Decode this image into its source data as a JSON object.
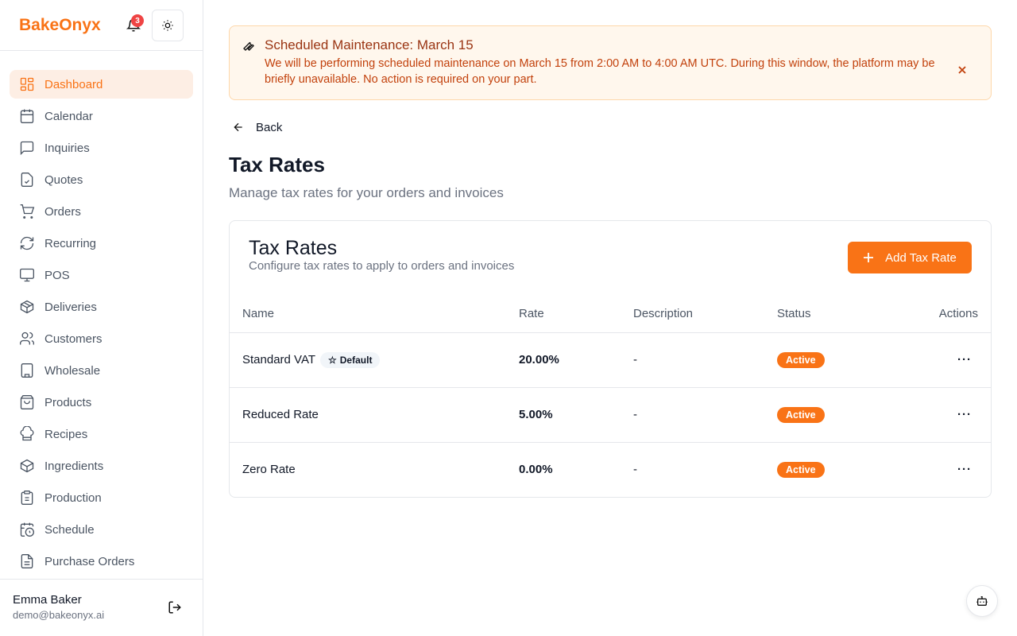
{
  "brand": {
    "name": "BakeOnyx",
    "notifications": "3",
    "accent": "#f97316"
  },
  "sidebar": {
    "items": [
      {
        "label": "Dashboard",
        "icon": "dashboard-icon",
        "active": true
      },
      {
        "label": "Calendar",
        "icon": "calendar-icon"
      },
      {
        "label": "Inquiries",
        "icon": "message-icon"
      },
      {
        "label": "Quotes",
        "icon": "file-check-icon"
      },
      {
        "label": "Orders",
        "icon": "cart-icon"
      },
      {
        "label": "Recurring",
        "icon": "refresh-icon"
      },
      {
        "label": "POS",
        "icon": "monitor-icon"
      },
      {
        "label": "Deliveries",
        "icon": "package-icon"
      },
      {
        "label": "Customers",
        "icon": "users-icon"
      },
      {
        "label": "Wholesale",
        "icon": "building-icon"
      },
      {
        "label": "Products",
        "icon": "shopping-bag-icon"
      },
      {
        "label": "Recipes",
        "icon": "chef-hat-icon"
      },
      {
        "label": "Ingredients",
        "icon": "box-icon"
      },
      {
        "label": "Production",
        "icon": "clipboard-icon"
      },
      {
        "label": "Schedule",
        "icon": "calendar-clock-icon"
      },
      {
        "label": "Purchase Orders",
        "icon": "file-text-icon"
      }
    ]
  },
  "user": {
    "name": "Emma Baker",
    "email": "demo@bakeonyx.ai"
  },
  "alert": {
    "title": "Scheduled Maintenance: March 15",
    "message": "We will be performing scheduled maintenance on March 15 from 2:00 AM to 4:00 AM UTC. During this window, the platform may be briefly unavailable. No action is required on your part."
  },
  "page": {
    "back": "Back",
    "title": "Tax Rates",
    "subtitle": "Manage tax rates for your orders and invoices"
  },
  "card": {
    "title": "Tax Rates",
    "subtitle": "Configure tax rates to apply to orders and invoices",
    "add_label": "Add Tax Rate"
  },
  "table": {
    "headers": [
      "Name",
      "Rate",
      "Description",
      "Status",
      "Actions"
    ],
    "rows": [
      {
        "name": "Standard VAT",
        "default": "Default",
        "rate": "20.00%",
        "description": "-",
        "status": "Active"
      },
      {
        "name": "Reduced Rate",
        "rate": "5.00%",
        "description": "-",
        "status": "Active"
      },
      {
        "name": "Zero Rate",
        "rate": "0.00%",
        "description": "-",
        "status": "Active"
      }
    ]
  }
}
